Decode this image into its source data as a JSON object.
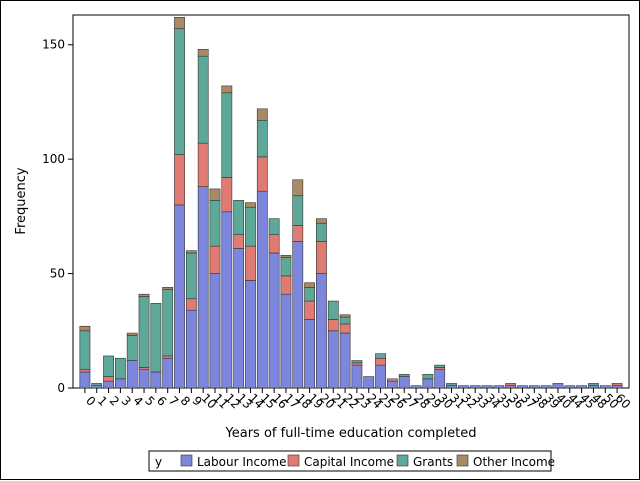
{
  "chart_data": {
    "type": "bar",
    "stacked": true,
    "title": "",
    "xlabel": "Years of full-time education completed",
    "ylabel": "Frequency",
    "ylim": [
      0,
      163
    ],
    "yticks": [
      0,
      50,
      100,
      150
    ],
    "grid": false,
    "legend": {
      "placement": "bottom",
      "title": "y",
      "entries": [
        "Labour Income",
        "Capital Income",
        "Grants",
        "Other Income"
      ]
    },
    "colors": {
      "Labour Income": "#7b86dc",
      "Capital Income": "#e07b74",
      "Grants": "#5ea89a",
      "Other Income": "#a88a64"
    },
    "categories": [
      "0",
      "1",
      "2",
      "3",
      "4",
      "5",
      "6",
      "7",
      "8",
      "9",
      "10",
      "11",
      "12",
      "13",
      "14",
      "15",
      "16",
      "17",
      "18",
      "19",
      "20",
      "21",
      "22",
      "23",
      "24",
      "25",
      "26",
      "27",
      "28",
      "29",
      "30",
      "31",
      "32",
      "33",
      "34",
      "35",
      "36",
      "37",
      "38",
      "39",
      "40",
      "44",
      "45",
      "48",
      "50",
      "60"
    ],
    "series": [
      {
        "name": "Labour Income",
        "values": [
          7,
          1,
          3,
          4,
          12,
          8,
          7,
          13,
          80,
          34,
          88,
          50,
          77,
          61,
          47,
          86,
          59,
          41,
          64,
          30,
          50,
          25,
          24,
          10,
          5,
          10,
          3,
          5,
          1,
          4,
          8,
          1,
          1,
          1,
          1,
          1,
          1,
          1,
          1,
          1,
          2,
          1,
          1,
          1,
          1,
          1
        ]
      },
      {
        "name": "Capital Income",
        "values": [
          1,
          0,
          2,
          0,
          0,
          1,
          0,
          1,
          22,
          5,
          19,
          12,
          15,
          6,
          15,
          15,
          8,
          8,
          7,
          8,
          14,
          5,
          4,
          1,
          0,
          3,
          1,
          0,
          0,
          0,
          1,
          0,
          0,
          0,
          0,
          0,
          1,
          0,
          0,
          0,
          0,
          0,
          0,
          0,
          0,
          1
        ]
      },
      {
        "name": "Grants",
        "values": [
          17,
          1,
          9,
          9,
          11,
          31,
          30,
          29,
          55,
          20,
          38,
          20,
          37,
          15,
          17,
          16,
          7,
          8,
          13,
          6,
          8,
          8,
          3,
          1,
          0,
          2,
          0,
          1,
          0,
          2,
          1,
          1,
          0,
          0,
          0,
          0,
          0,
          0,
          0,
          0,
          0,
          0,
          0,
          1,
          0,
          0
        ]
      },
      {
        "name": "Other Income",
        "values": [
          2,
          0,
          0,
          0,
          1,
          1,
          0,
          1,
          5,
          1,
          3,
          5,
          3,
          0,
          2,
          5,
          0,
          1,
          7,
          2,
          2,
          0,
          1,
          0,
          0,
          0,
          0,
          0,
          0,
          0,
          0,
          0,
          0,
          0,
          0,
          0,
          0,
          0,
          0,
          0,
          0,
          0,
          0,
          0,
          0,
          0
        ]
      }
    ]
  }
}
